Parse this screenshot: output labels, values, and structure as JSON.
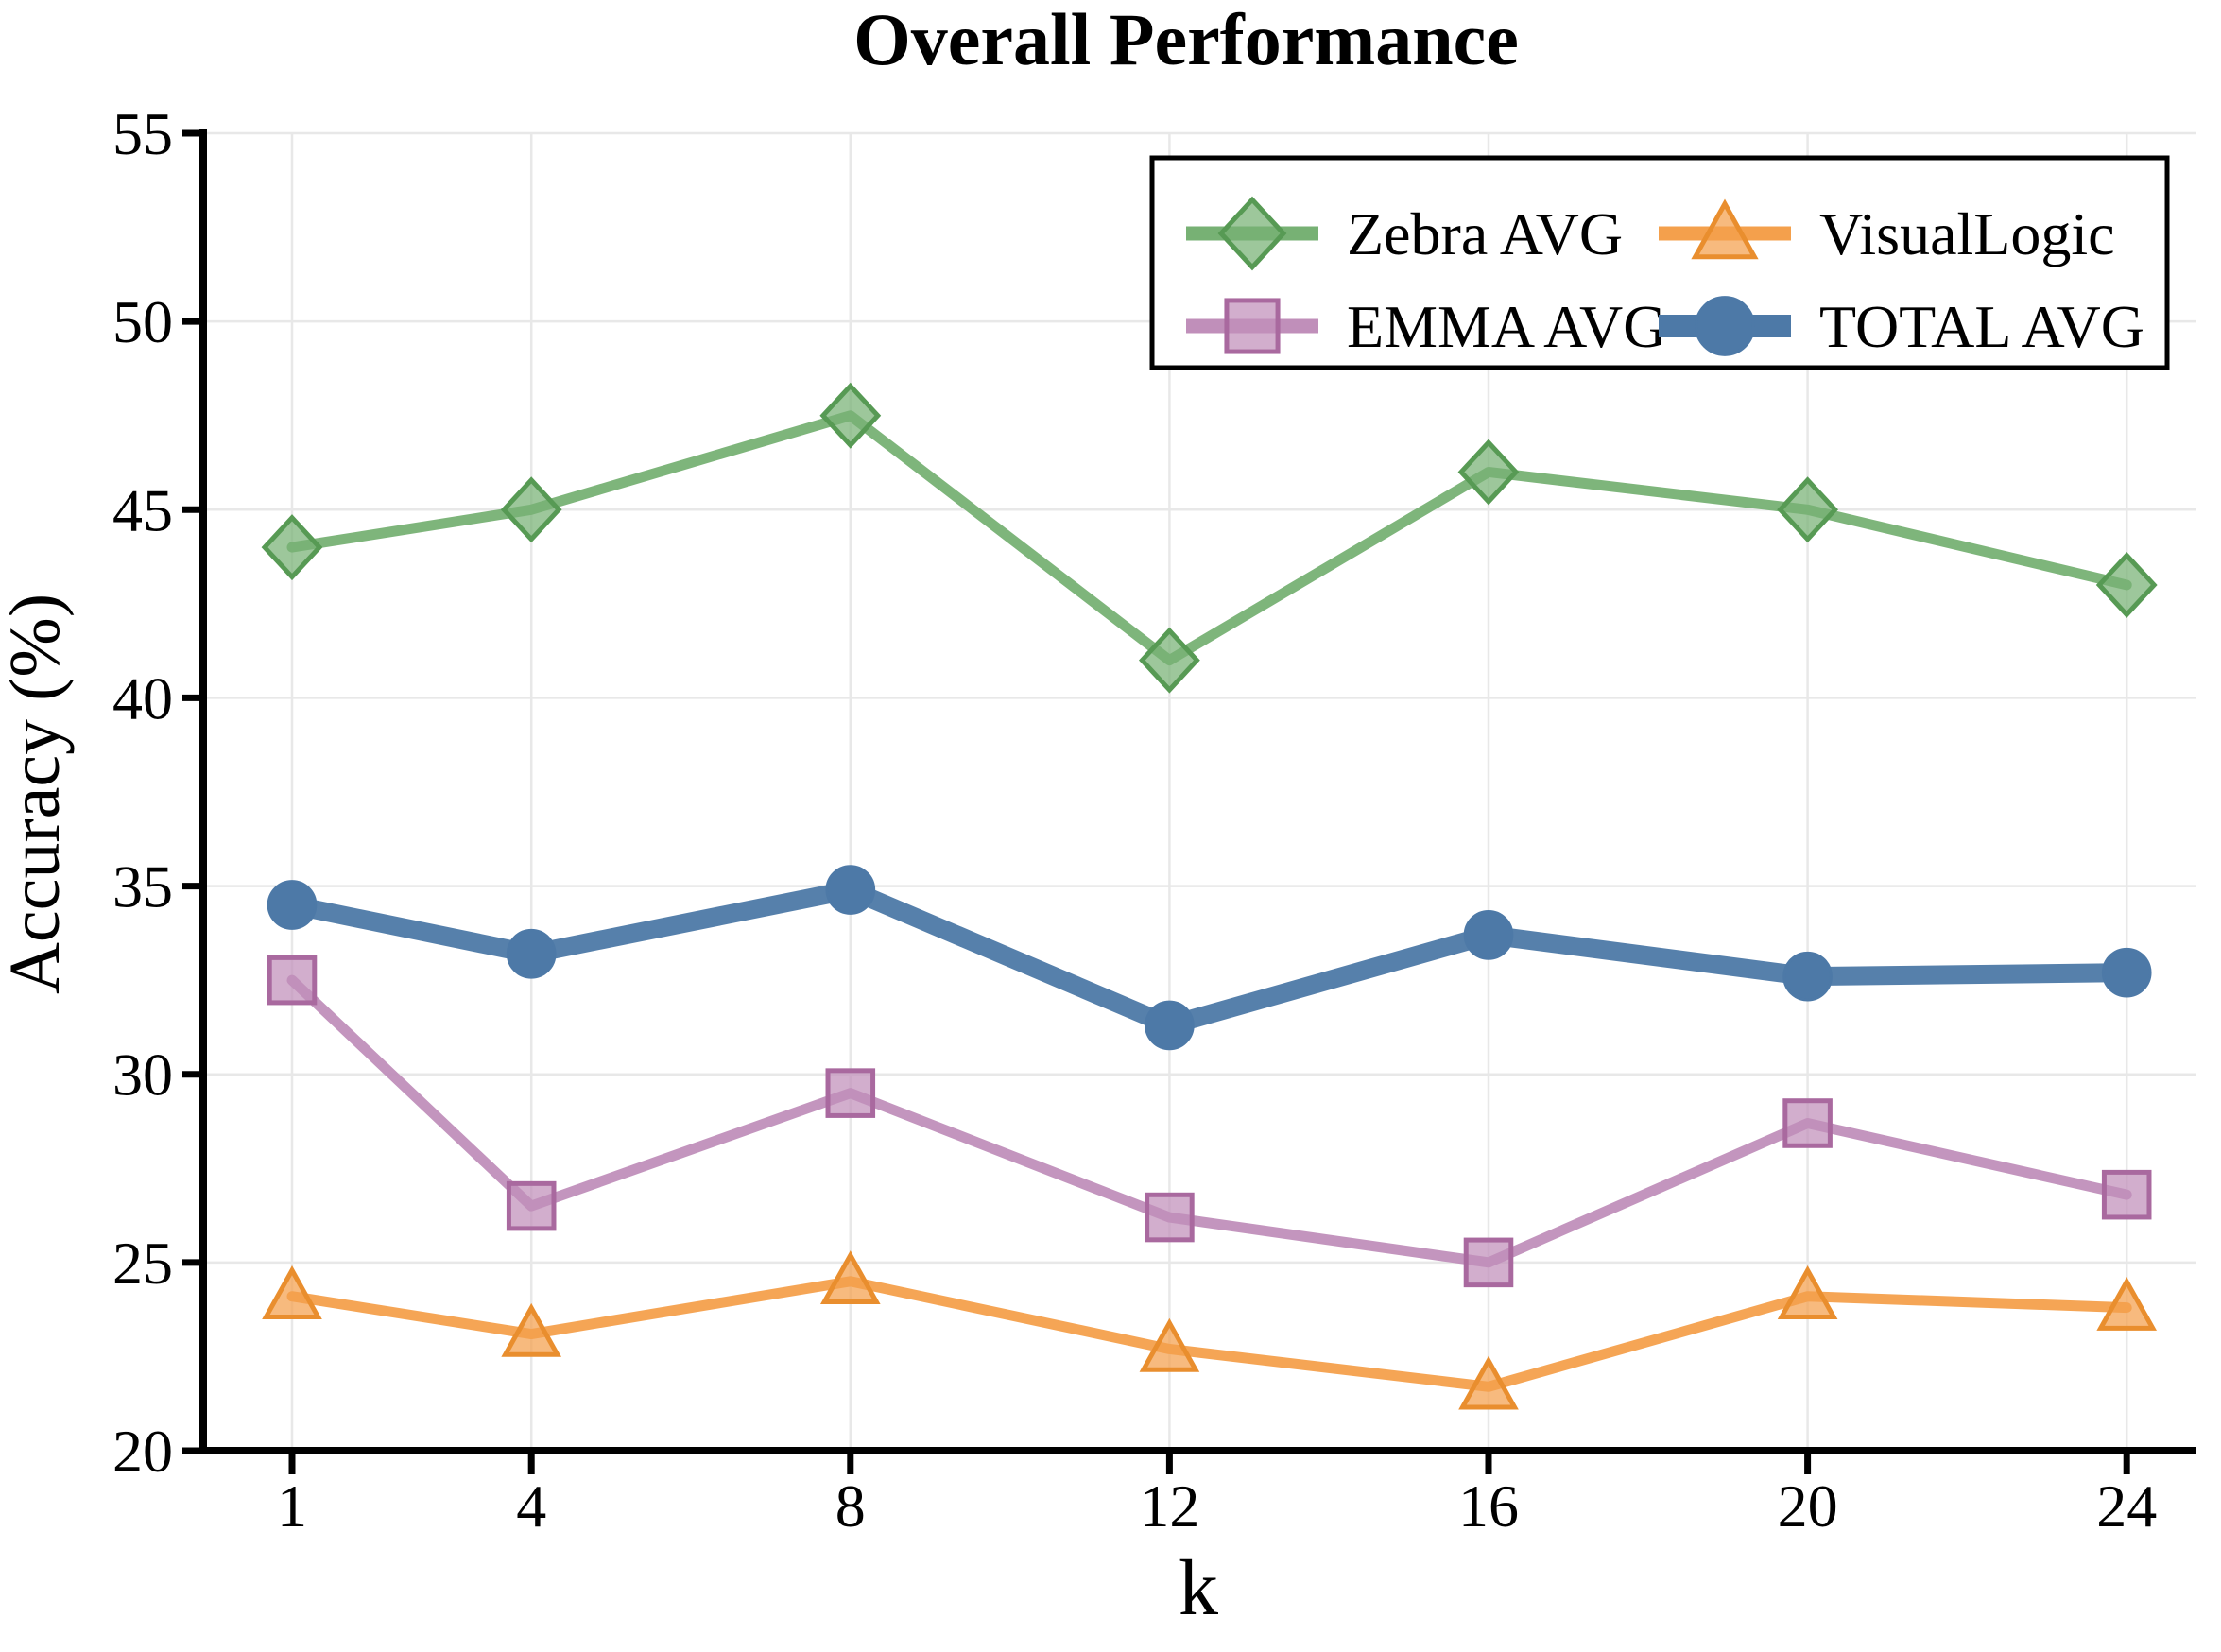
{
  "figure": {
    "title": "Overall Performance"
  },
  "chart_data": {
    "type": "line",
    "title": "Overall Performance",
    "xlabel": "k",
    "ylabel": "Accuracy (%)",
    "x": [
      1,
      4,
      8,
      12,
      16,
      20,
      24
    ],
    "xtick_labels": [
      "1",
      "4",
      "8",
      "12",
      "16",
      "20",
      "24"
    ],
    "yticks": [
      20,
      25,
      30,
      35,
      40,
      45,
      50,
      55
    ],
    "ytick_labels": [
      "20",
      "25",
      "30",
      "35",
      "40",
      "45",
      "50",
      "55"
    ],
    "ylim": [
      20,
      55
    ],
    "xlim": [
      -0.2,
      25.1
    ],
    "grid": true,
    "legend_position": "upper right",
    "legend_columns": 2,
    "series": [
      {
        "name": "Zebra AVG",
        "marker": "diamond",
        "color": "#77b174",
        "edge_color": "#579a54",
        "linewidth": 11,
        "values": [
          44.0,
          45.0,
          47.5,
          41.0,
          46.0,
          45.0,
          43.0
        ]
      },
      {
        "name": "EMMA AVG",
        "marker": "square",
        "color": "#c08fba",
        "edge_color": "#a9699f",
        "linewidth": 11,
        "values": [
          32.5,
          26.5,
          29.5,
          26.2,
          25.0,
          28.7,
          26.8
        ]
      },
      {
        "name": "VisualLogic",
        "marker": "triangle",
        "color": "#f4a04c",
        "edge_color": "#e98e2e",
        "linewidth": 11,
        "values": [
          24.1,
          23.1,
          24.5,
          22.7,
          21.7,
          24.1,
          23.8
        ]
      },
      {
        "name": "TOTAL AVG",
        "marker": "circle",
        "color": "#4d79a7",
        "edge_color": "#4d79a7",
        "linewidth": 20,
        "values": [
          34.5,
          33.2,
          34.9,
          31.3,
          33.7,
          32.6,
          32.7
        ]
      }
    ],
    "colors": {
      "grid": "#e8e8e8",
      "axis": "#000000",
      "legend_border": "#000000",
      "background": "#ffffff"
    }
  }
}
